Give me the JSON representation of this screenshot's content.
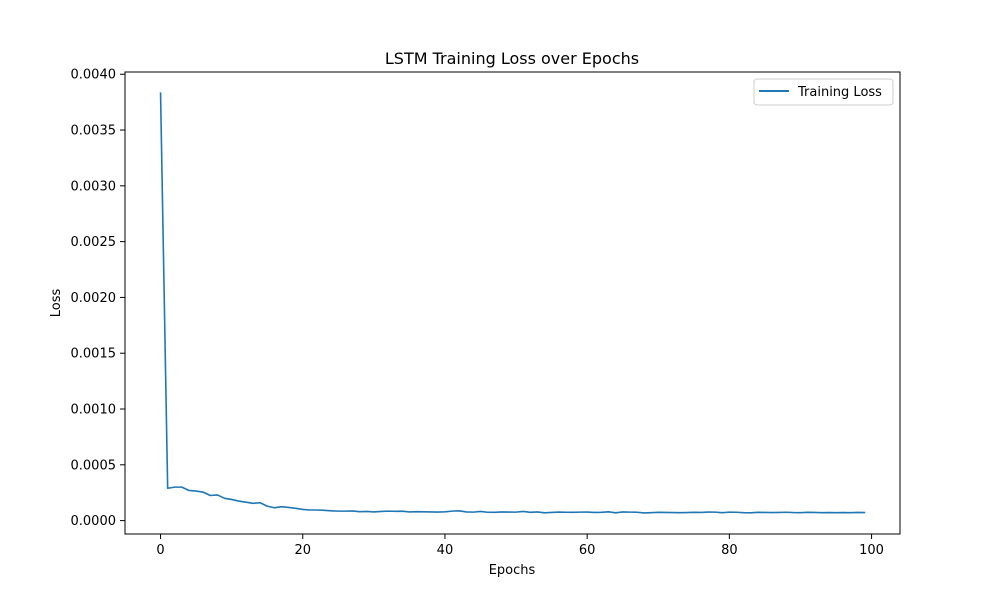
{
  "chart_data": {
    "type": "line",
    "title": "LSTM Training Loss over Epochs",
    "xlabel": "Epochs",
    "ylabel": "Loss",
    "xlim": [
      -5,
      104
    ],
    "ylim": [
      -0.00012,
      0.00402
    ],
    "xticks": [
      0,
      20,
      40,
      60,
      80,
      100
    ],
    "xtick_labels": [
      "0",
      "20",
      "40",
      "60",
      "80",
      "100"
    ],
    "yticks": [
      0,
      0.0005,
      0.001,
      0.0015,
      0.002,
      0.0025,
      0.003,
      0.0035,
      0.004
    ],
    "ytick_labels": [
      "0.0000",
      "0.0005",
      "0.0010",
      "0.0015",
      "0.0020",
      "0.0025",
      "0.0030",
      "0.0035",
      "0.0040"
    ],
    "grid": false,
    "legend_position": "top-right",
    "series": [
      {
        "name": "Training Loss",
        "color": "#1f77b4",
        "x": [
          0,
          1,
          2,
          3,
          4,
          5,
          6,
          7,
          8,
          9,
          10,
          11,
          12,
          13,
          14,
          15,
          16,
          17,
          18,
          19,
          20,
          21,
          22,
          23,
          24,
          25,
          26,
          27,
          28,
          29,
          30,
          31,
          32,
          33,
          34,
          35,
          36,
          37,
          38,
          39,
          40,
          41,
          42,
          43,
          44,
          45,
          46,
          47,
          48,
          49,
          50,
          51,
          52,
          53,
          54,
          55,
          56,
          57,
          58,
          59,
          60,
          61,
          62,
          63,
          64,
          65,
          66,
          67,
          68,
          69,
          70,
          71,
          72,
          73,
          74,
          75,
          76,
          77,
          78,
          79,
          80,
          81,
          82,
          83,
          84,
          85,
          86,
          87,
          88,
          89,
          90,
          91,
          92,
          93,
          94,
          95,
          96,
          97,
          98,
          99
        ],
        "values": [
          0.00383,
          0.00029,
          0.0003,
          0.0003,
          0.00027,
          0.000265,
          0.000255,
          0.000225,
          0.00023,
          0.0002,
          0.00019,
          0.000175,
          0.000165,
          0.000155,
          0.00016,
          0.00013,
          0.000115,
          0.000125,
          0.000118,
          0.00011,
          0.0001,
          9.5e-05,
          9.5e-05,
          9.2e-05,
          8.8e-05,
          8.5e-05,
          8.5e-05,
          8.7e-05,
          8e-05,
          8.2e-05,
          7.8e-05,
          8.2e-05,
          8.5e-05,
          8.3e-05,
          8.4e-05,
          7.8e-05,
          8e-05,
          7.9e-05,
          7.8e-05,
          7.7e-05,
          7.9e-05,
          8.5e-05,
          8.8e-05,
          7.8e-05,
          7.6e-05,
          8.2e-05,
          7.5e-05,
          7.4e-05,
          7.8e-05,
          7.7e-05,
          7.6e-05,
          8.2e-05,
          7.4e-05,
          7.8e-05,
          7e-05,
          7.3e-05,
          7.7e-05,
          7.5e-05,
          7.4e-05,
          7.6e-05,
          7.7e-05,
          7.3e-05,
          7.4e-05,
          7.9e-05,
          7e-05,
          7.8e-05,
          7.6e-05,
          7.5e-05,
          6.9e-05,
          7.1e-05,
          7.4e-05,
          7.3e-05,
          7.2e-05,
          7.1e-05,
          7.2e-05,
          7.4e-05,
          7.3e-05,
          7.7e-05,
          7.6e-05,
          7.1e-05,
          7.6e-05,
          7.5e-05,
          7.1e-05,
          7e-05,
          7.4e-05,
          7.3e-05,
          7.2e-05,
          7.3e-05,
          7.5e-05,
          7.2e-05,
          7.1e-05,
          7.4e-05,
          7.3e-05,
          7.1e-05,
          7.2e-05,
          7.1e-05,
          7.2e-05,
          7.1e-05,
          7.3e-05,
          7.2e-05
        ]
      }
    ]
  }
}
